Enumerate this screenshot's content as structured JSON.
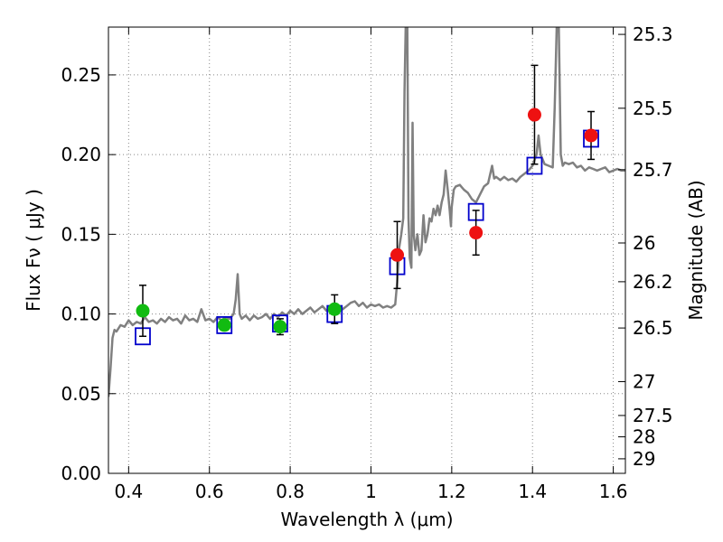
{
  "chart_data": {
    "type": "scatter",
    "xlabel": "Wavelength  λ (μm)",
    "ylabel": "Flux  Fν  ( μJy )",
    "ylabel_right": "Magnitude (AB)",
    "xlim": [
      0.35,
      1.63
    ],
    "ylim": [
      0.0,
      0.28
    ],
    "grid": true,
    "x_ticks": [
      {
        "value": 0.4,
        "label": "0.4"
      },
      {
        "value": 0.6,
        "label": "0.6"
      },
      {
        "value": 0.8,
        "label": "0.8"
      },
      {
        "value": 1.0,
        "label": "1"
      },
      {
        "value": 1.2,
        "label": "1.2"
      },
      {
        "value": 1.4,
        "label": "1.4"
      },
      {
        "value": 1.6,
        "label": "1.6"
      }
    ],
    "y_ticks": [
      {
        "value": 0.0,
        "label": "0.00"
      },
      {
        "value": 0.05,
        "label": "0.05"
      },
      {
        "value": 0.1,
        "label": "0.10"
      },
      {
        "value": 0.15,
        "label": "0.15"
      },
      {
        "value": 0.2,
        "label": "0.20"
      },
      {
        "value": 0.25,
        "label": "0.25"
      }
    ],
    "mag_ticks": [
      {
        "mag": 25.3,
        "label": "25.3"
      },
      {
        "mag": 25.5,
        "label": "25.5"
      },
      {
        "mag": 25.7,
        "label": "25.7"
      },
      {
        "mag": 26.0,
        "label": "26"
      },
      {
        "mag": 26.2,
        "label": "26.2"
      },
      {
        "mag": 26.5,
        "label": "26.5"
      },
      {
        "mag": 27.0,
        "label": "27"
      },
      {
        "mag": 27.5,
        "label": "27.5"
      },
      {
        "mag": 28.0,
        "label": "28"
      },
      {
        "mag": 29.0,
        "label": "29"
      }
    ],
    "colors": {
      "spectrum": "#808080",
      "green": "#11bb11",
      "red": "#ee1111",
      "model_box": "#0000cc",
      "errorbar": "#000000",
      "grid": "#888888"
    },
    "series": [
      {
        "kind": "spectrum",
        "points": [
          [
            0.35,
            0.048
          ],
          [
            0.355,
            0.065
          ],
          [
            0.36,
            0.085
          ],
          [
            0.365,
            0.09
          ],
          [
            0.37,
            0.089
          ],
          [
            0.38,
            0.093
          ],
          [
            0.39,
            0.092
          ],
          [
            0.4,
            0.096
          ],
          [
            0.41,
            0.093
          ],
          [
            0.42,
            0.095
          ],
          [
            0.43,
            0.094
          ],
          [
            0.44,
            0.098
          ],
          [
            0.45,
            0.095
          ],
          [
            0.46,
            0.096
          ],
          [
            0.47,
            0.094
          ],
          [
            0.48,
            0.097
          ],
          [
            0.49,
            0.095
          ],
          [
            0.5,
            0.098
          ],
          [
            0.51,
            0.096
          ],
          [
            0.52,
            0.097
          ],
          [
            0.53,
            0.094
          ],
          [
            0.54,
            0.099
          ],
          [
            0.55,
            0.096
          ],
          [
            0.56,
            0.097
          ],
          [
            0.57,
            0.095
          ],
          [
            0.58,
            0.103
          ],
          [
            0.59,
            0.096
          ],
          [
            0.6,
            0.097
          ],
          [
            0.61,
            0.095
          ],
          [
            0.62,
            0.098
          ],
          [
            0.63,
            0.096
          ],
          [
            0.64,
            0.098
          ],
          [
            0.65,
            0.097
          ],
          [
            0.66,
            0.1
          ],
          [
            0.665,
            0.109
          ],
          [
            0.67,
            0.125
          ],
          [
            0.675,
            0.1
          ],
          [
            0.68,
            0.097
          ],
          [
            0.69,
            0.099
          ],
          [
            0.7,
            0.096
          ],
          [
            0.71,
            0.099
          ],
          [
            0.72,
            0.097
          ],
          [
            0.73,
            0.098
          ],
          [
            0.74,
            0.1
          ],
          [
            0.75,
            0.097
          ],
          [
            0.76,
            0.1
          ],
          [
            0.77,
            0.098
          ],
          [
            0.78,
            0.101
          ],
          [
            0.79,
            0.099
          ],
          [
            0.8,
            0.102
          ],
          [
            0.81,
            0.1
          ],
          [
            0.82,
            0.103
          ],
          [
            0.83,
            0.1
          ],
          [
            0.84,
            0.102
          ],
          [
            0.85,
            0.104
          ],
          [
            0.86,
            0.101
          ],
          [
            0.87,
            0.103
          ],
          [
            0.88,
            0.105
          ],
          [
            0.89,
            0.102
          ],
          [
            0.9,
            0.104
          ],
          [
            0.91,
            0.103
          ],
          [
            0.92,
            0.105
          ],
          [
            0.93,
            0.103
          ],
          [
            0.94,
            0.105
          ],
          [
            0.95,
            0.107
          ],
          [
            0.96,
            0.108
          ],
          [
            0.97,
            0.105
          ],
          [
            0.98,
            0.107
          ],
          [
            0.99,
            0.104
          ],
          [
            1.0,
            0.106
          ],
          [
            1.01,
            0.105
          ],
          [
            1.02,
            0.106
          ],
          [
            1.03,
            0.104
          ],
          [
            1.04,
            0.105
          ],
          [
            1.05,
            0.104
          ],
          [
            1.06,
            0.106
          ],
          [
            1.065,
            0.12
          ],
          [
            1.07,
            0.142
          ],
          [
            1.075,
            0.15
          ],
          [
            1.08,
            0.16
          ],
          [
            1.083,
            0.24
          ],
          [
            1.086,
            0.28
          ],
          [
            1.09,
            0.28
          ],
          [
            1.093,
            0.16
          ],
          [
            1.096,
            0.135
          ],
          [
            1.1,
            0.129
          ],
          [
            1.103,
            0.22
          ],
          [
            1.106,
            0.15
          ],
          [
            1.11,
            0.14
          ],
          [
            1.115,
            0.15
          ],
          [
            1.12,
            0.137
          ],
          [
            1.125,
            0.14
          ],
          [
            1.13,
            0.162
          ],
          [
            1.135,
            0.145
          ],
          [
            1.14,
            0.15
          ],
          [
            1.145,
            0.16
          ],
          [
            1.15,
            0.158
          ],
          [
            1.155,
            0.166
          ],
          [
            1.16,
            0.162
          ],
          [
            1.165,
            0.168
          ],
          [
            1.17,
            0.162
          ],
          [
            1.175,
            0.17
          ],
          [
            1.18,
            0.175
          ],
          [
            1.185,
            0.19
          ],
          [
            1.19,
            0.178
          ],
          [
            1.195,
            0.165
          ],
          [
            1.198,
            0.155
          ],
          [
            1.2,
            0.167
          ],
          [
            1.205,
            0.178
          ],
          [
            1.21,
            0.18
          ],
          [
            1.22,
            0.181
          ],
          [
            1.23,
            0.178
          ],
          [
            1.24,
            0.176
          ],
          [
            1.25,
            0.172
          ],
          [
            1.26,
            0.17
          ],
          [
            1.27,
            0.175
          ],
          [
            1.28,
            0.18
          ],
          [
            1.29,
            0.182
          ],
          [
            1.3,
            0.193
          ],
          [
            1.305,
            0.185
          ],
          [
            1.31,
            0.186
          ],
          [
            1.32,
            0.184
          ],
          [
            1.33,
            0.186
          ],
          [
            1.34,
            0.184
          ],
          [
            1.35,
            0.185
          ],
          [
            1.36,
            0.183
          ],
          [
            1.37,
            0.186
          ],
          [
            1.38,
            0.188
          ],
          [
            1.39,
            0.19
          ],
          [
            1.4,
            0.193
          ],
          [
            1.41,
            0.2
          ],
          [
            1.415,
            0.212
          ],
          [
            1.42,
            0.2
          ],
          [
            1.43,
            0.194
          ],
          [
            1.44,
            0.193
          ],
          [
            1.45,
            0.192
          ],
          [
            1.455,
            0.23
          ],
          [
            1.46,
            0.28
          ],
          [
            1.465,
            0.28
          ],
          [
            1.47,
            0.2
          ],
          [
            1.475,
            0.193
          ],
          [
            1.48,
            0.195
          ],
          [
            1.49,
            0.194
          ],
          [
            1.5,
            0.195
          ],
          [
            1.51,
            0.192
          ],
          [
            1.52,
            0.193
          ],
          [
            1.53,
            0.19
          ],
          [
            1.54,
            0.192
          ],
          [
            1.55,
            0.191
          ],
          [
            1.56,
            0.19
          ],
          [
            1.57,
            0.191
          ],
          [
            1.58,
            0.192
          ],
          [
            1.59,
            0.189
          ],
          [
            1.6,
            0.19
          ],
          [
            1.61,
            0.191
          ],
          [
            1.62,
            0.19
          ],
          [
            1.63,
            0.19
          ]
        ]
      },
      {
        "kind": "model",
        "points": [
          {
            "x": 0.435,
            "y": 0.086
          },
          {
            "x": 0.637,
            "y": 0.093
          },
          {
            "x": 0.775,
            "y": 0.094
          },
          {
            "x": 0.91,
            "y": 0.1
          },
          {
            "x": 1.065,
            "y": 0.13
          },
          {
            "x": 1.26,
            "y": 0.164
          },
          {
            "x": 1.405,
            "y": 0.193
          },
          {
            "x": 1.545,
            "y": 0.21
          }
        ]
      },
      {
        "kind": "obs-green",
        "points": [
          {
            "x": 0.435,
            "y": 0.102,
            "err": 0.016
          },
          {
            "x": 0.637,
            "y": 0.093,
            "err": 0.003
          },
          {
            "x": 0.775,
            "y": 0.092,
            "err": 0.005
          },
          {
            "x": 0.91,
            "y": 0.103,
            "err": 0.009
          }
        ]
      },
      {
        "kind": "obs-red",
        "points": [
          {
            "x": 1.065,
            "y": 0.137,
            "err": 0.021
          },
          {
            "x": 1.26,
            "y": 0.151,
            "err": 0.014
          },
          {
            "x": 1.405,
            "y": 0.225,
            "err": 0.031
          },
          {
            "x": 1.545,
            "y": 0.212,
            "err": 0.015
          }
        ]
      }
    ]
  }
}
